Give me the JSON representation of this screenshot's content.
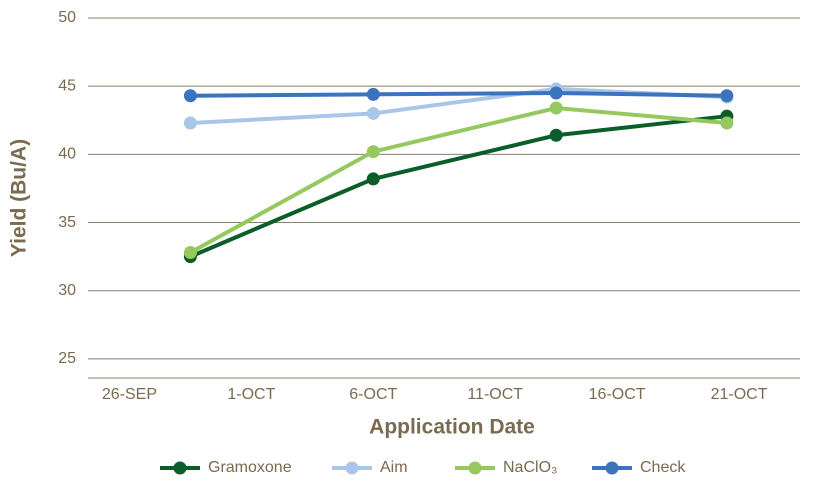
{
  "chart_data": {
    "type": "line",
    "xlabel": "Application Date",
    "ylabel": "Yield (Bu/A)",
    "x": [
      2.5,
      10,
      17.5,
      24.5
    ],
    "xlim": [
      -1.7,
      27.5
    ],
    "xticks": [
      {
        "value": 0,
        "label": "26-SEP"
      },
      {
        "value": 5,
        "label": "1-OCT"
      },
      {
        "value": 10,
        "label": "6-OCT"
      },
      {
        "value": 15,
        "label": "11-OCT"
      },
      {
        "value": 20,
        "label": "16-OCT"
      },
      {
        "value": 25,
        "label": "21-OCT"
      }
    ],
    "ylim": [
      23.6,
      50
    ],
    "yticks": [
      25,
      30,
      35,
      40,
      45,
      50
    ],
    "grid": true,
    "legend": "bottom",
    "series": [
      {
        "name": "Gramoxone",
        "color": "#0b5e2a",
        "values": [
          32.5,
          38.2,
          41.4,
          42.8
        ]
      },
      {
        "name": "Aim",
        "color": "#a9c6e8",
        "values": [
          42.3,
          43.0,
          44.8,
          44.2
        ]
      },
      {
        "name": "NaClO₃",
        "color": "#95c95f",
        "values": [
          32.8,
          40.2,
          43.4,
          42.3
        ]
      },
      {
        "name": "Check",
        "color": "#3b74bd",
        "values": [
          44.3,
          44.4,
          44.5,
          44.3
        ]
      }
    ]
  }
}
